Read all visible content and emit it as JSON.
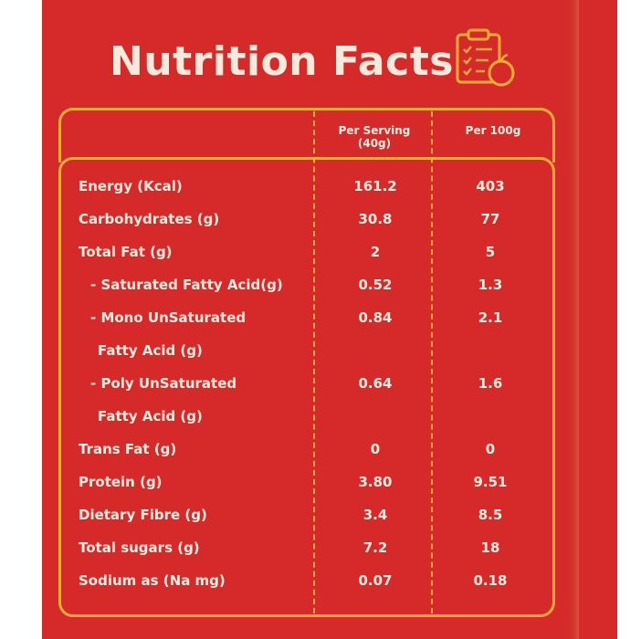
{
  "title": "Nutrition Facts",
  "headers": {
    "per_serving": "Per Serving",
    "serving_size": "(40g)",
    "per_100g": "Per 100g"
  },
  "rows": [
    {
      "label": "Energy (Kcal)",
      "serving": "161.2",
      "per100": "403"
    },
    {
      "label": "Carbohydrates (g)",
      "serving": "30.8",
      "per100": "77"
    },
    {
      "label": "Total Fat (g)",
      "serving": "2",
      "per100": "5"
    },
    {
      "label": "- Saturated Fatty Acid(g)",
      "serving": "0.52",
      "per100": "1.3"
    },
    {
      "label": "- Mono UnSaturated",
      "serving": "0.84",
      "per100": "2.1"
    },
    {
      "label": "Fatty Acid (g)",
      "serving": "",
      "per100": ""
    },
    {
      "label": "- Poly UnSaturated",
      "serving": "0.64",
      "per100": "1.6"
    },
    {
      "label": "Fatty Acid (g)",
      "serving": "",
      "per100": ""
    },
    {
      "label": "Trans Fat (g)",
      "serving": "0",
      "per100": "0"
    },
    {
      "label": "Protein (g)",
      "serving": "3.80",
      "per100": "9.51"
    },
    {
      "label": "Dietary Fibre (g)",
      "serving": "3.4",
      "per100": "8.5"
    },
    {
      "label": "Total sugars (g)",
      "serving": "7.2",
      "per100": "18"
    },
    {
      "label": "Sodium as (Na mg)",
      "serving": "0.07",
      "per100": "0.18"
    }
  ],
  "colors": {
    "background": "#d62a2a",
    "border": "#f1ad37",
    "text": "#f7ece0"
  },
  "icons": {
    "title_icon": "clipboard-checklist-apple-icon"
  }
}
